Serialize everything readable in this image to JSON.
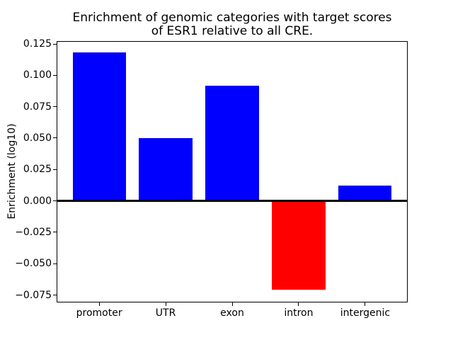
{
  "title": {
    "line1": "Enrichment of genomic categories with target scores",
    "line2": "of ESR1 relative to all CRE."
  },
  "chart_data": {
    "type": "bar",
    "title": "Enrichment of genomic categories with target scores\nof ESR1 relative to all CRE.",
    "categories": [
      "promoter",
      "UTR",
      "exon",
      "intron",
      "intergenic"
    ],
    "values": [
      0.118,
      0.05,
      0.092,
      -0.071,
      0.012
    ],
    "colors": [
      "#0000ff",
      "#0000ff",
      "#0000ff",
      "#ff0000",
      "#0000ff"
    ],
    "positive_color": "#0000ff",
    "negative_color": "#ff0000",
    "xlabel": "",
    "ylabel": "Enrichment (log10)",
    "ylim": [
      -0.081,
      0.1275
    ],
    "yticks": [
      0.125,
      0.1,
      0.075,
      0.05,
      0.025,
      0.0,
      -0.025,
      -0.05,
      -0.075
    ],
    "ytick_labels": [
      "0.125",
      "0.100",
      "0.075",
      "0.050",
      "0.025",
      "0.000",
      "−0.025",
      "−0.050",
      "−0.075"
    ],
    "bar_width_fraction": 0.8,
    "zero_line": true,
    "grid": false,
    "legend": false,
    "axis_color": "#000000",
    "text_color": "#000000",
    "background_color": "#ffffff"
  }
}
